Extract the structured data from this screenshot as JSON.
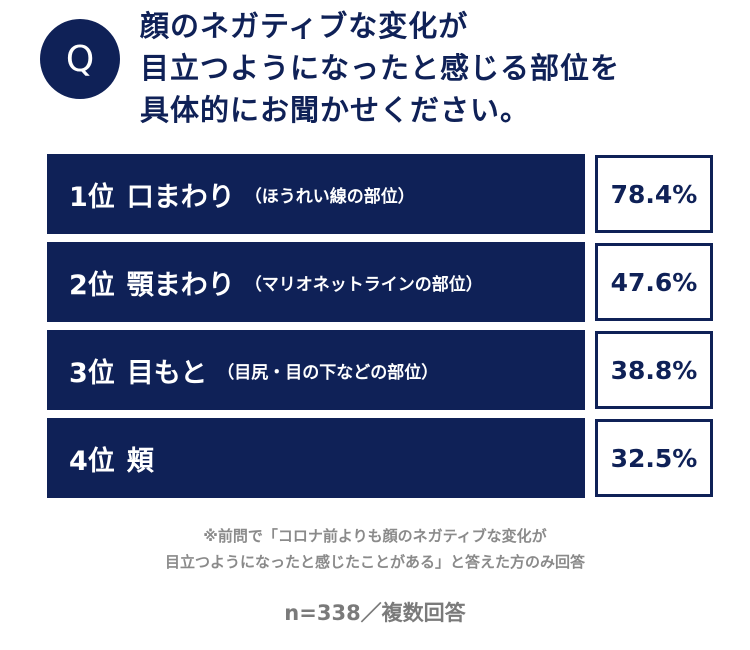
{
  "question": {
    "badge": "Q",
    "lines": [
      "顔のネガティブな変化が",
      "目立つようになったと感じる部位を",
      "具体的にお聞かせください。"
    ]
  },
  "chart_data": {
    "type": "bar",
    "categories": [
      {
        "rank": "1位",
        "name": "口まわり",
        "note": "（ほうれい線の部位）"
      },
      {
        "rank": "2位",
        "name": "顎まわり",
        "note": "（マリオネットラインの部位）"
      },
      {
        "rank": "3位",
        "name": "目もと",
        "note": "（目尻・目の下などの部位）"
      },
      {
        "rank": "4位",
        "name": "頬",
        "note": ""
      }
    ],
    "values": [
      78.4,
      47.6,
      38.8,
      32.5
    ],
    "value_labels": [
      "78.4%",
      "47.6%",
      "38.8%",
      "32.5%"
    ],
    "unit": "%"
  },
  "footnote": [
    "※前問で「コロナ前よりも顔のネガティブな変化が",
    "目立つようになったと感じたことがある」と答えた方のみ回答"
  ],
  "sample": "n=338／複数回答",
  "colors": {
    "navy": "#0f2157",
    "gray": "#8a8a8a",
    "background": "#ffffff"
  }
}
